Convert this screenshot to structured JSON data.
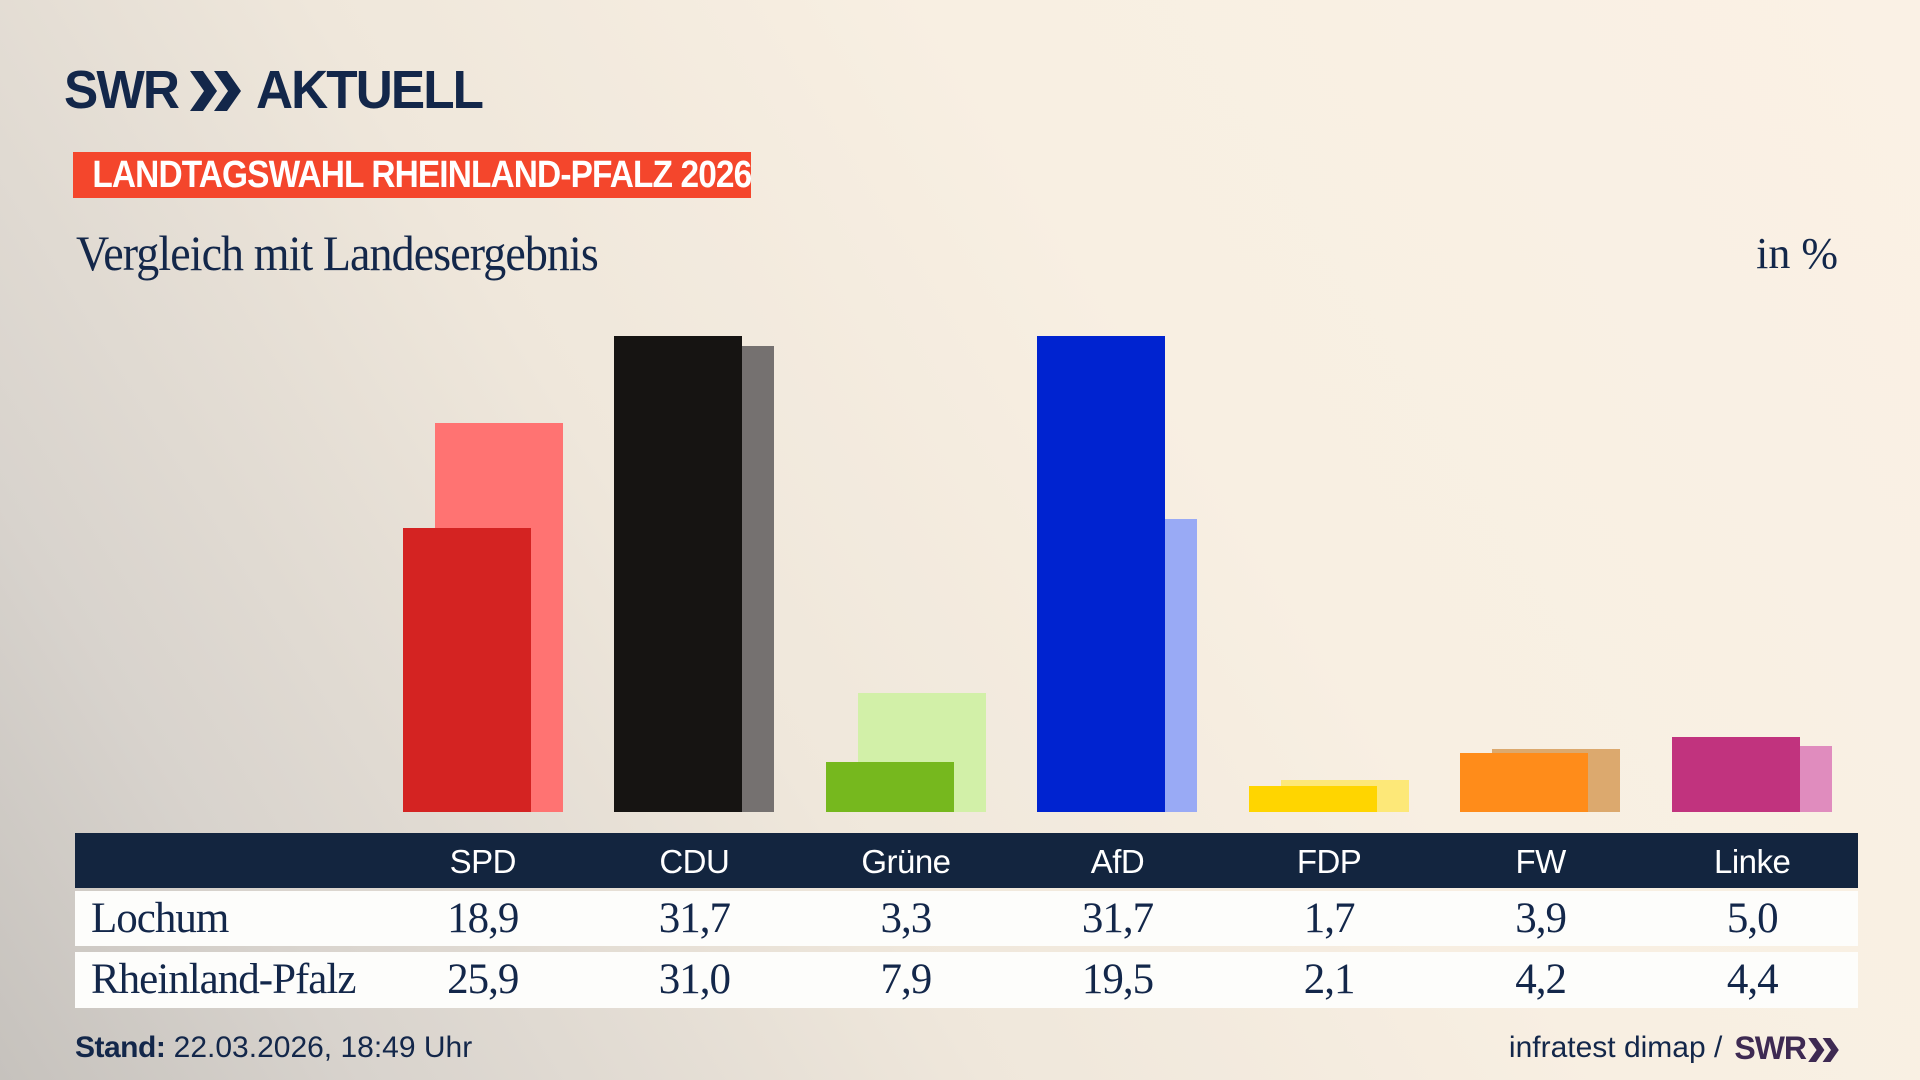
{
  "brand": {
    "logo_swr": "SWR",
    "logo_aktuell": "AKTUELL",
    "badge": "LANDTAGSWAHL RHEINLAND-PFALZ 2026"
  },
  "header": {
    "title": "Vergleich mit Landesergebnis",
    "unit_label": "in %"
  },
  "chart_data": {
    "type": "bar",
    "title": "Vergleich mit Landesergebnis",
    "unit": "in %",
    "categories": [
      "SPD",
      "CDU",
      "Grüne",
      "AfD",
      "FDP",
      "FW",
      "Linke"
    ],
    "series": [
      {
        "name": "Lochum",
        "values": [
          18.9,
          31.7,
          3.3,
          31.7,
          1.7,
          3.9,
          5.0
        ]
      },
      {
        "name": "Rheinland-Pfalz",
        "values": [
          25.9,
          31.0,
          7.9,
          19.5,
          2.1,
          4.2,
          4.4
        ]
      }
    ],
    "colors": [
      {
        "front": "#d42322",
        "back": "#ff7372"
      },
      {
        "front": "#161412",
        "back": "#757170"
      },
      {
        "front": "#76b81e",
        "back": "#d2f0a8"
      },
      {
        "front": "#0023d0",
        "back": "#99aaf5"
      },
      {
        "front": "#ffd500",
        "back": "#fde878"
      },
      {
        "front": "#ff8c1a",
        "back": "#dca96e"
      },
      {
        "front": "#c1337e",
        "back": "#e08cbe"
      }
    ],
    "ylim": [
      0,
      34
    ],
    "grid": false,
    "legend": "table-below"
  },
  "table": {
    "rows": [
      {
        "label": "Lochum",
        "values": [
          "18,9",
          "31,7",
          "3,3",
          "31,7",
          "1,7",
          "3,9",
          "5,0"
        ]
      },
      {
        "label": "Rheinland-Pfalz",
        "values": [
          "25,9",
          "31,0",
          "7,9",
          "19,5",
          "2,1",
          "4,2",
          "4,4"
        ]
      }
    ]
  },
  "footer": {
    "stand_label": "Stand:",
    "stand_value": " 22.03.2026, 18:49 Uhr",
    "source_text": "infratest dimap /",
    "source_brand": "SWR"
  }
}
